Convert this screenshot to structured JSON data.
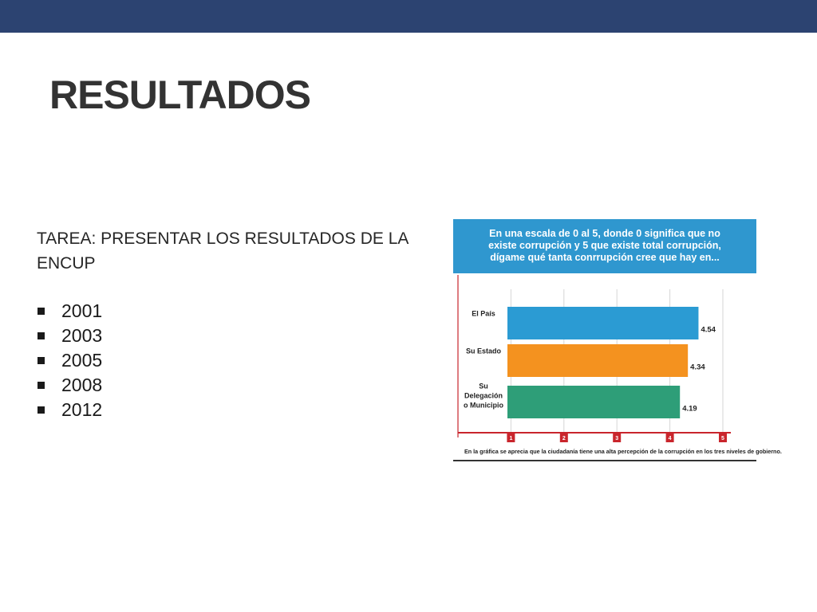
{
  "slide": {
    "title": "RESULTADOS",
    "task": "TAREA: PRESENTAR LOS RESULTADOS DE LA ENCUP",
    "years": [
      "2001",
      "2003",
      "2005",
      "2008",
      "2012"
    ]
  },
  "chart_data": {
    "type": "bar",
    "orientation": "horizontal",
    "title": "En una escala de 0 al 5, donde 0 significa que no\nexiste corrupción y 5 que existe total corrupción,\ndígame qué tanta conrrupción cree que hay en...",
    "categories": [
      "El País",
      "Su Estado",
      "Su Delegación o Municipio"
    ],
    "values": [
      4.54,
      4.34,
      4.19
    ],
    "value_labels": [
      "4.54",
      "4.34",
      "4.19"
    ],
    "bar_colors": [
      "#2b9bd3",
      "#f4921f",
      "#2e9e78"
    ],
    "xlim": [
      0,
      5
    ],
    "x_ticks": [
      "1",
      "2",
      "3",
      "4",
      "5"
    ],
    "grid": true,
    "footnote": "En la gráfica se aprecia que la ciudadanía tiene una alta percepción de la corrupción en los tres niveles de gobierno."
  }
}
